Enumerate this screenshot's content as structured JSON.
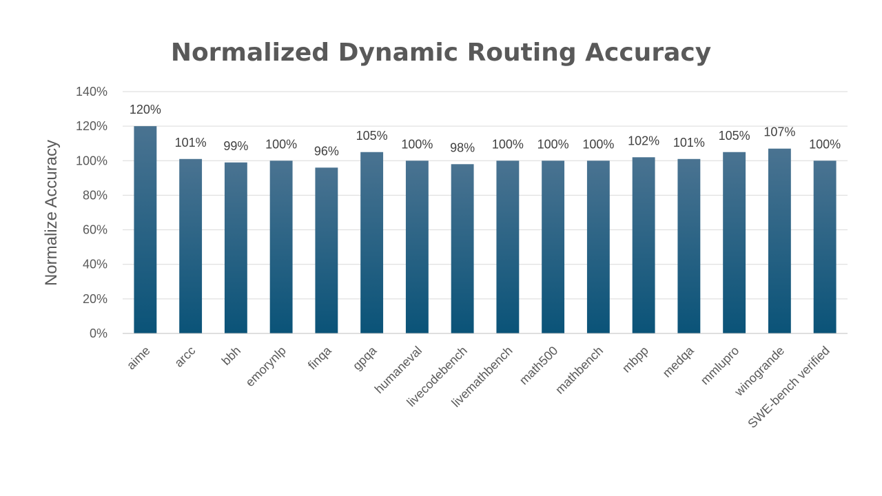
{
  "chart_data": {
    "type": "bar",
    "title": "Normalized Dynamic Routing Accuracy",
    "xlabel": "",
    "ylabel": "Normalize Accuracy",
    "ylim": [
      0,
      140
    ],
    "y_ticks": [
      0,
      20,
      40,
      60,
      80,
      100,
      120,
      140
    ],
    "y_tick_labels": [
      "0%",
      "20%",
      "40%",
      "60%",
      "80%",
      "100%",
      "120%",
      "140%"
    ],
    "grid": true,
    "legend": "none",
    "categories": [
      "aime",
      "arcc",
      "bbh",
      "emorynlp",
      "finqa",
      "gpqa",
      "humaneval",
      "livecodebench",
      "livemathbench",
      "math500",
      "mathbench",
      "mbpp",
      "medqa",
      "mmlupro",
      "winogrande",
      "SWE-bench verified"
    ],
    "values": [
      120,
      101,
      99,
      100,
      96,
      105,
      100,
      98,
      100,
      100,
      100,
      102,
      101,
      105,
      107,
      100
    ],
    "value_labels": [
      "120%",
      "101%",
      "99%",
      "100%",
      "96%",
      "105%",
      "100%",
      "98%",
      "100%",
      "100%",
      "100%",
      "102%",
      "101%",
      "105%",
      "107%",
      "100%"
    ],
    "colors": {
      "bar_top": "#4a7391",
      "bar_bottom": "#0a5378",
      "title": "#595959",
      "text": "#595959",
      "data_label": "#404040",
      "grid": "#d9d9d9"
    }
  }
}
